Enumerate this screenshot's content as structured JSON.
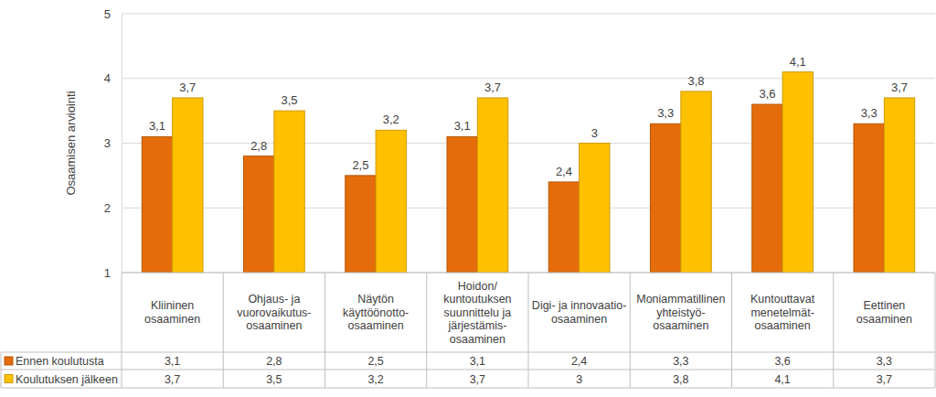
{
  "chart_data": {
    "type": "bar",
    "y_label": "Osaamisen arviointi",
    "categories": [
      "Kliininen\nosaaminen",
      "Ohjaus- ja\nvuorovaikutus-\nosaaminen",
      "Näytön\nkäyttöönotto-\nosaaminen",
      "Hoidon/\nkuntoutuksen\nsuunnittelu ja\njärjestämis-\nosaaminen",
      "Digi- ja innovaatio-\nosaaminen",
      "Moniammatillinen\nyhteistyö-\nosaaminen",
      "Kuntouttavat\nmenetelmät-\nosaaminen",
      "Eettinen\nosaaminen"
    ],
    "series": [
      {
        "name": "Ennen koulutusta",
        "color": "#e46c0a",
        "values": [
          3.1,
          2.8,
          2.5,
          3.1,
          2.4,
          3.3,
          3.6,
          3.3
        ],
        "value_labels": [
          "3,1",
          "2,8",
          "2,5",
          "3,1",
          "2,4",
          "3,3",
          "3,6",
          "3,3"
        ]
      },
      {
        "name": "Koulutuksen jälkeen",
        "color": "#ffc000",
        "values": [
          3.7,
          3.5,
          3.2,
          3.7,
          3,
          3.8,
          4.1,
          3.7
        ],
        "value_labels": [
          "3,7",
          "3,5",
          "3,2",
          "3,7",
          "3",
          "3,8",
          "4,1",
          "3,7"
        ]
      }
    ],
    "ylim": [
      1,
      5
    ],
    "yticks": [
      1,
      2,
      3,
      4,
      5
    ],
    "grid": true,
    "data_labels": true,
    "legend": "bottom"
  }
}
